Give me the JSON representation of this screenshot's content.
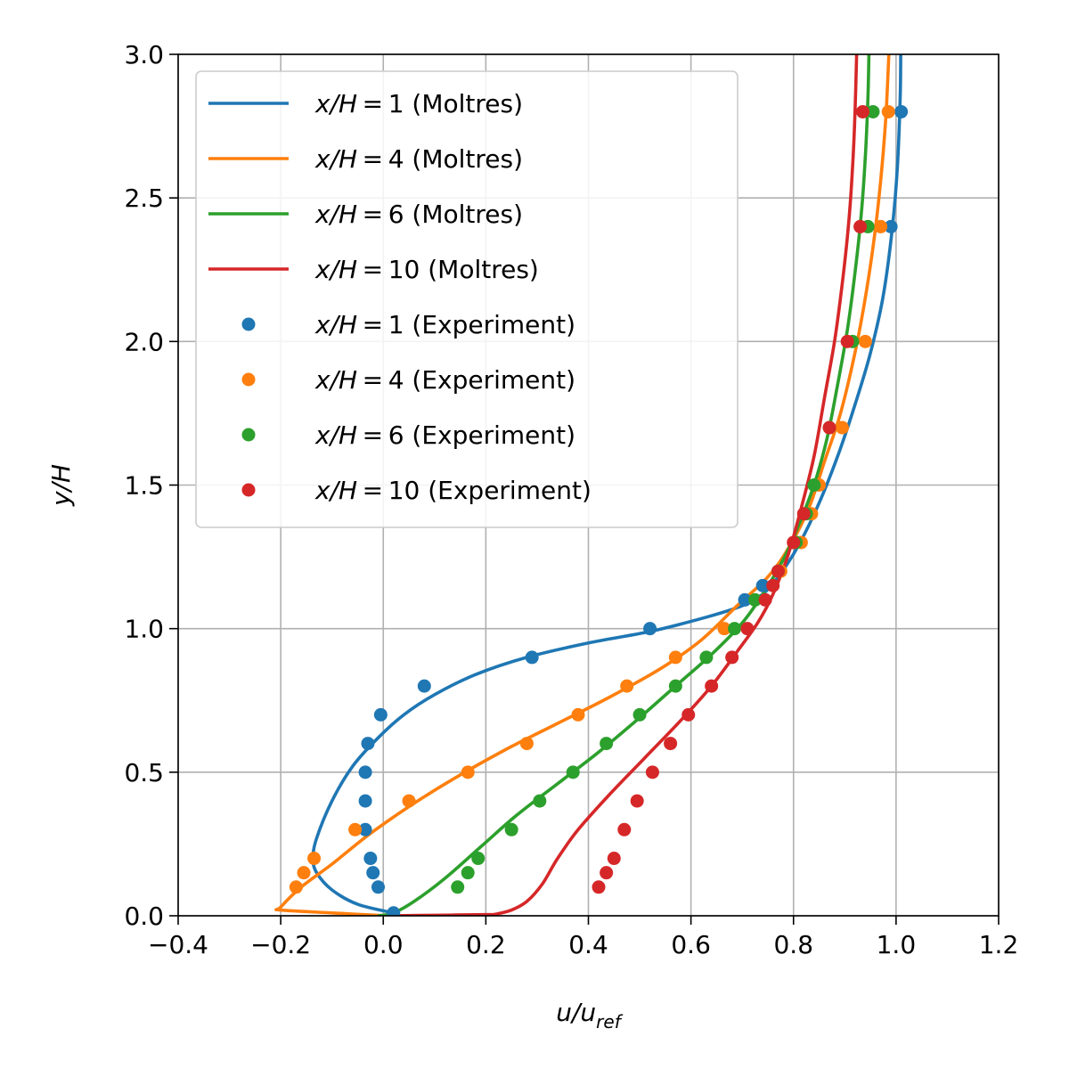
{
  "chart_data": {
    "type": "line",
    "xlabel": "u/u",
    "xlabel_sub": "ref",
    "ylabel": "y/H",
    "xlim": [
      -0.4,
      1.2
    ],
    "ylim": [
      0.0,
      3.0
    ],
    "xticks": [
      -0.4,
      -0.2,
      0.0,
      0.2,
      0.4,
      0.6,
      0.8,
      1.0,
      1.2
    ],
    "xtick_labels": [
      "−0.4",
      "−0.2",
      "0.0",
      "0.2",
      "0.4",
      "0.6",
      "0.8",
      "1.0",
      "1.2"
    ],
    "yticks": [
      0.0,
      0.5,
      1.0,
      1.5,
      2.0,
      2.5,
      3.0
    ],
    "ytick_labels": [
      "0.0",
      "0.5",
      "1.0",
      "1.5",
      "2.0",
      "2.5",
      "3.0"
    ],
    "grid": true,
    "legend_position": "upper-left",
    "series": [
      {
        "name": "x/H = 1 (Moltres)",
        "kind": "line",
        "color": "#1f77b4",
        "points": [
          [
            0.02,
            0.01
          ],
          [
            -0.05,
            0.04
          ],
          [
            -0.1,
            0.09
          ],
          [
            -0.13,
            0.15
          ],
          [
            -0.137,
            0.2
          ],
          [
            -0.13,
            0.27
          ],
          [
            -0.1,
            0.4
          ],
          [
            -0.06,
            0.52
          ],
          [
            -0.01,
            0.62
          ],
          [
            0.04,
            0.7
          ],
          [
            0.1,
            0.77
          ],
          [
            0.18,
            0.84
          ],
          [
            0.28,
            0.9
          ],
          [
            0.4,
            0.95
          ],
          [
            0.52,
            0.99
          ],
          [
            0.63,
            1.04
          ],
          [
            0.7,
            1.08
          ],
          [
            0.74,
            1.12
          ],
          [
            0.77,
            1.18
          ],
          [
            0.8,
            1.26
          ],
          [
            0.83,
            1.36
          ],
          [
            0.86,
            1.48
          ],
          [
            0.89,
            1.62
          ],
          [
            0.92,
            1.78
          ],
          [
            0.95,
            1.96
          ],
          [
            0.975,
            2.16
          ],
          [
            0.993,
            2.4
          ],
          [
            1.003,
            2.62
          ],
          [
            1.008,
            2.85
          ],
          [
            1.009,
            3.0
          ]
        ]
      },
      {
        "name": "x/H = 4 (Moltres)",
        "kind": "line",
        "color": "#ff7f0e",
        "points": [
          [
            0.01,
            0.0
          ],
          [
            -0.1,
            0.01
          ],
          [
            -0.2,
            0.02
          ],
          [
            -0.2,
            0.03
          ],
          [
            -0.16,
            0.1
          ],
          [
            -0.1,
            0.18
          ],
          [
            -0.03,
            0.28
          ],
          [
            0.05,
            0.38
          ],
          [
            0.14,
            0.48
          ],
          [
            0.24,
            0.58
          ],
          [
            0.34,
            0.67
          ],
          [
            0.44,
            0.76
          ],
          [
            0.54,
            0.86
          ],
          [
            0.62,
            0.96
          ],
          [
            0.69,
            1.08
          ],
          [
            0.75,
            1.18
          ],
          [
            0.79,
            1.28
          ],
          [
            0.83,
            1.42
          ],
          [
            0.86,
            1.58
          ],
          [
            0.89,
            1.74
          ],
          [
            0.915,
            1.92
          ],
          [
            0.937,
            2.12
          ],
          [
            0.956,
            2.34
          ],
          [
            0.97,
            2.56
          ],
          [
            0.98,
            2.78
          ],
          [
            0.986,
            3.0
          ]
        ]
      },
      {
        "name": "x/H = 6 (Moltres)",
        "kind": "line",
        "color": "#2ca02c",
        "points": [
          [
            -0.01,
            0.0
          ],
          [
            0.02,
            0.01
          ],
          [
            0.06,
            0.05
          ],
          [
            0.12,
            0.13
          ],
          [
            0.19,
            0.24
          ],
          [
            0.26,
            0.35
          ],
          [
            0.34,
            0.46
          ],
          [
            0.42,
            0.57
          ],
          [
            0.5,
            0.69
          ],
          [
            0.57,
            0.8
          ],
          [
            0.64,
            0.91
          ],
          [
            0.7,
            1.02
          ],
          [
            0.74,
            1.12
          ],
          [
            0.78,
            1.24
          ],
          [
            0.81,
            1.36
          ],
          [
            0.84,
            1.5
          ],
          [
            0.865,
            1.66
          ],
          [
            0.885,
            1.84
          ],
          [
            0.905,
            2.04
          ],
          [
            0.92,
            2.24
          ],
          [
            0.932,
            2.44
          ],
          [
            0.94,
            2.64
          ],
          [
            0.945,
            2.84
          ],
          [
            0.947,
            3.0
          ]
        ]
      },
      {
        "name": "x/H = 10 (Moltres)",
        "kind": "line",
        "color": "#d62728",
        "points": [
          [
            0.01,
            0.0
          ],
          [
            0.1,
            0.002
          ],
          [
            0.2,
            0.004
          ],
          [
            0.22,
            0.006
          ],
          [
            0.25,
            0.02
          ],
          [
            0.28,
            0.05
          ],
          [
            0.31,
            0.11
          ],
          [
            0.34,
            0.2
          ],
          [
            0.38,
            0.3
          ],
          [
            0.44,
            0.42
          ],
          [
            0.51,
            0.55
          ],
          [
            0.58,
            0.68
          ],
          [
            0.64,
            0.8
          ],
          [
            0.69,
            0.92
          ],
          [
            0.73,
            1.02
          ],
          [
            0.76,
            1.12
          ],
          [
            0.79,
            1.26
          ],
          [
            0.815,
            1.42
          ],
          [
            0.84,
            1.6
          ],
          [
            0.86,
            1.8
          ],
          [
            0.88,
            2.0
          ],
          [
            0.895,
            2.2
          ],
          [
            0.907,
            2.4
          ],
          [
            0.915,
            2.6
          ],
          [
            0.92,
            2.8
          ],
          [
            0.923,
            3.0
          ]
        ]
      },
      {
        "name": "x/H = 1 (Experiment)",
        "kind": "scatter",
        "color": "#1f77b4",
        "points": [
          [
            0.02,
            0.01
          ],
          [
            -0.01,
            0.1
          ],
          [
            -0.02,
            0.15
          ],
          [
            -0.025,
            0.2
          ],
          [
            -0.035,
            0.3
          ],
          [
            -0.035,
            0.4
          ],
          [
            -0.035,
            0.5
          ],
          [
            -0.03,
            0.6
          ],
          [
            -0.005,
            0.7
          ],
          [
            0.08,
            0.8
          ],
          [
            0.29,
            0.9
          ],
          [
            0.52,
            1.0
          ],
          [
            0.705,
            1.1
          ],
          [
            0.74,
            1.15
          ],
          [
            0.99,
            2.4
          ],
          [
            1.01,
            2.8
          ]
        ]
      },
      {
        "name": "x/H = 4 (Experiment)",
        "kind": "scatter",
        "color": "#ff7f0e",
        "points": [
          [
            -0.17,
            0.1
          ],
          [
            -0.155,
            0.15
          ],
          [
            -0.135,
            0.2
          ],
          [
            -0.055,
            0.3
          ],
          [
            0.05,
            0.4
          ],
          [
            0.165,
            0.5
          ],
          [
            0.28,
            0.6
          ],
          [
            0.38,
            0.7
          ],
          [
            0.475,
            0.8
          ],
          [
            0.57,
            0.9
          ],
          [
            0.665,
            1.0
          ],
          [
            0.775,
            1.2
          ],
          [
            0.815,
            1.3
          ],
          [
            0.835,
            1.4
          ],
          [
            0.85,
            1.5
          ],
          [
            0.895,
            1.7
          ],
          [
            0.94,
            2.0
          ],
          [
            0.97,
            2.4
          ],
          [
            0.985,
            2.8
          ]
        ]
      },
      {
        "name": "x/H = 6 (Experiment)",
        "kind": "scatter",
        "color": "#2ca02c",
        "points": [
          [
            0.145,
            0.1
          ],
          [
            0.165,
            0.15
          ],
          [
            0.185,
            0.2
          ],
          [
            0.25,
            0.3
          ],
          [
            0.305,
            0.4
          ],
          [
            0.37,
            0.5
          ],
          [
            0.435,
            0.6
          ],
          [
            0.5,
            0.7
          ],
          [
            0.57,
            0.8
          ],
          [
            0.63,
            0.9
          ],
          [
            0.685,
            1.0
          ],
          [
            0.725,
            1.1
          ],
          [
            0.77,
            1.2
          ],
          [
            0.805,
            1.3
          ],
          [
            0.825,
            1.4
          ],
          [
            0.84,
            1.5
          ],
          [
            0.87,
            1.7
          ],
          [
            0.915,
            2.0
          ],
          [
            0.945,
            2.4
          ],
          [
            0.955,
            2.8
          ]
        ]
      },
      {
        "name": "x/H = 10 (Experiment)",
        "kind": "scatter",
        "color": "#d62728",
        "points": [
          [
            0.42,
            0.1
          ],
          [
            0.435,
            0.15
          ],
          [
            0.45,
            0.2
          ],
          [
            0.47,
            0.3
          ],
          [
            0.495,
            0.4
          ],
          [
            0.525,
            0.5
          ],
          [
            0.56,
            0.6
          ],
          [
            0.595,
            0.7
          ],
          [
            0.64,
            0.8
          ],
          [
            0.68,
            0.9
          ],
          [
            0.71,
            1.0
          ],
          [
            0.745,
            1.1
          ],
          [
            0.76,
            1.15
          ],
          [
            0.77,
            1.2
          ],
          [
            0.8,
            1.3
          ],
          [
            0.82,
            1.4
          ],
          [
            0.87,
            1.7
          ],
          [
            0.905,
            2.0
          ],
          [
            0.93,
            2.4
          ],
          [
            0.935,
            2.8
          ]
        ]
      }
    ]
  }
}
